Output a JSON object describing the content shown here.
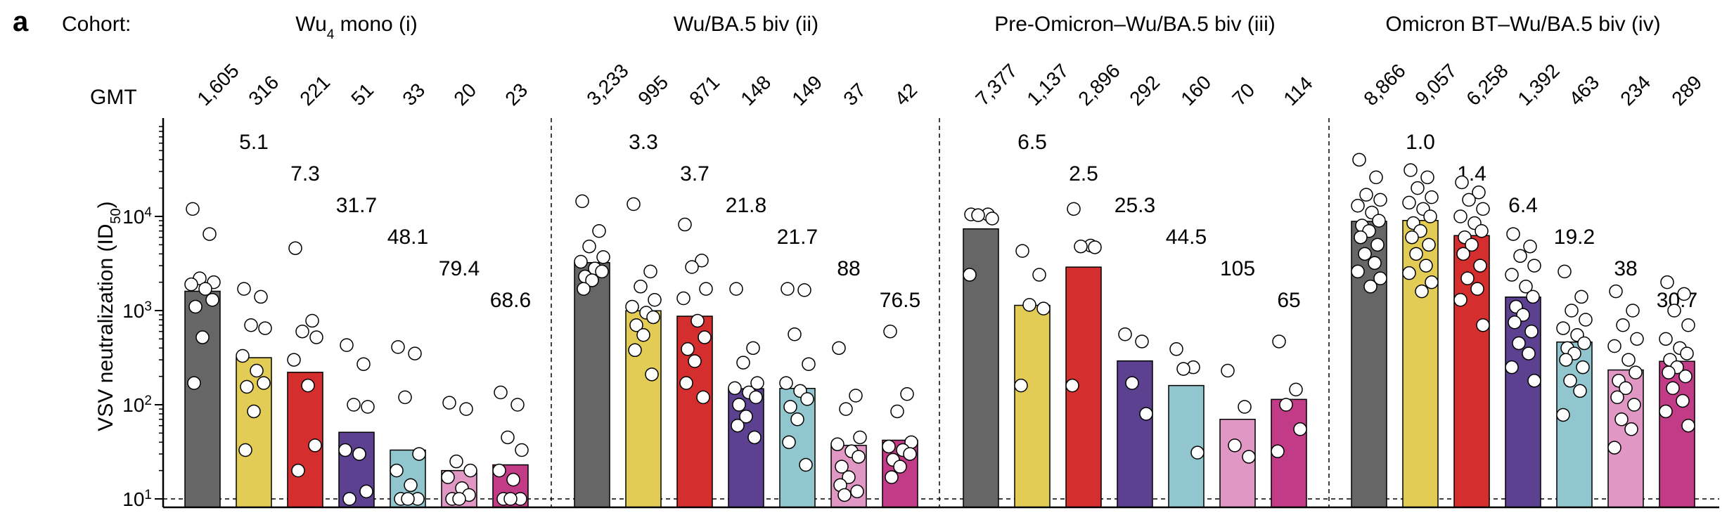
{
  "panel_label": "a",
  "cohort_label": "Cohort:",
  "gmt_label": "GMT",
  "colors": [
    "#666666",
    "#e3cc55",
    "#d42e2e",
    "#5b418f",
    "#92c6cf",
    "#e097c3",
    "#c13b87"
  ],
  "chart_data": {
    "type": "bar",
    "ylabel": "VSV neutralization (ID50)",
    "yscale": "log",
    "ylim": [
      8,
      100000
    ],
    "yticks": [
      {
        "value": 10,
        "base": "10",
        "exp": "1"
      },
      {
        "value": 100,
        "base": "10",
        "exp": "2"
      },
      {
        "value": 1000,
        "base": "10",
        "exp": "3"
      },
      {
        "value": 10000,
        "base": "10",
        "exp": "4"
      }
    ],
    "detection_limit": 10,
    "grid": false,
    "groups": [
      {
        "title": "Wu4 mono (i)",
        "title_main": "Wu",
        "title_sub": "4",
        "title_rest": " mono (i)",
        "gmt_labels": [
          "1,605",
          "316",
          "221",
          "51",
          "33",
          "20",
          "23"
        ],
        "gmt": [
          1605,
          316,
          221,
          51,
          33,
          20,
          23
        ],
        "fold": [
          "",
          "5.1",
          "7.3",
          "31.7",
          "48.1",
          "79.4",
          "68.6"
        ],
        "points": [
          [
            12000,
            6500,
            2200,
            2000,
            1900,
            1700,
            1300,
            1100,
            520,
            170
          ],
          [
            1700,
            1400,
            700,
            650,
            330,
            230,
            170,
            155,
            85,
            33
          ],
          [
            4600,
            780,
            600,
            520,
            300,
            160,
            37,
            20
          ],
          [
            430,
            270,
            100,
            95,
            33,
            30,
            12,
            10
          ],
          [
            410,
            350,
            120,
            30,
            20,
            14,
            10,
            10,
            10
          ],
          [
            105,
            90,
            25,
            20,
            17,
            13,
            11,
            10,
            10
          ],
          [
            135,
            100,
            45,
            33,
            20,
            16,
            10,
            10,
            10
          ]
        ]
      },
      {
        "title": "Wu/BA.5 biv (ii)",
        "title_main": "Wu/BA.5 biv (ii)",
        "title_sub": "",
        "title_rest": "",
        "gmt_labels": [
          "3,233",
          "995",
          "871",
          "148",
          "149",
          "37",
          "42"
        ],
        "gmt": [
          3233,
          995,
          871,
          148,
          149,
          37,
          42
        ],
        "fold": [
          "",
          "3.3",
          "3.7",
          "21.8",
          "21.7",
          "88",
          "76.5"
        ],
        "points": [
          [
            14500,
            7000,
            4800,
            3700,
            3300,
            2800,
            2600,
            2300,
            2100,
            1700
          ],
          [
            13500,
            2600,
            1800,
            1300,
            1100,
            950,
            850,
            700,
            550,
            380,
            210
          ],
          [
            8200,
            3400,
            2900,
            1700,
            1350,
            780,
            520,
            390,
            290,
            170,
            120
          ],
          [
            1700,
            400,
            280,
            170,
            150,
            135,
            120,
            100,
            75,
            60,
            45
          ],
          [
            1700,
            1650,
            560,
            270,
            170,
            140,
            115,
            95,
            70,
            40,
            23
          ],
          [
            400,
            125,
            90,
            45,
            38,
            32,
            28,
            22,
            17,
            14,
            12,
            11
          ],
          [
            600,
            130,
            85,
            40,
            36,
            33,
            30,
            26,
            22,
            17
          ]
        ]
      },
      {
        "title": "Pre-Omicron–Wu/BA.5 biv (iii)",
        "title_main": "Pre-Omicron–Wu/BA.5 biv (iii)",
        "title_sub": "",
        "title_rest": "",
        "gmt_labels": [
          "7,377",
          "1,137",
          "2,896",
          "292",
          "160",
          "70",
          "114"
        ],
        "gmt": [
          7377,
          1137,
          2896,
          292,
          160,
          70,
          114
        ],
        "fold": [
          "",
          "6.5",
          "2.5",
          "25.3",
          "44.5",
          "105",
          "65"
        ],
        "points": [
          [
            10500,
            10500,
            10300,
            9500,
            2400
          ],
          [
            4300,
            2400,
            1150,
            1050,
            160
          ],
          [
            12000,
            4900,
            4800,
            4700,
            160
          ],
          [
            560,
            470,
            170,
            80
          ],
          [
            390,
            250,
            240,
            31
          ],
          [
            230,
            95,
            37,
            28
          ],
          [
            470,
            145,
            100,
            55,
            32
          ]
        ]
      },
      {
        "title": "Omicron BT–Wu/BA.5 biv (iv)",
        "title_main": "Omicron BT–Wu/BA.5 biv (iv)",
        "title_sub": "",
        "title_rest": "",
        "gmt_labels": [
          "8,866",
          "9,057",
          "6,258",
          "1,392",
          "463",
          "234",
          "289"
        ],
        "gmt": [
          8866,
          9057,
          6258,
          1392,
          463,
          234,
          289
        ],
        "fold": [
          "",
          "1.0",
          "1.4",
          "6.4",
          "19.2",
          "38",
          "30.7"
        ],
        "points": [
          [
            40000,
            26000,
            17000,
            15000,
            13000,
            11000,
            9000,
            8000,
            7000,
            6000,
            5000,
            4000,
            3200,
            2600,
            2200,
            1800
          ],
          [
            31000,
            26000,
            20000,
            16000,
            14000,
            12000,
            10000,
            8500,
            7000,
            6000,
            5000,
            4000,
            3000,
            2500,
            2000,
            1600
          ],
          [
            23000,
            18000,
            15000,
            12000,
            10000,
            8500,
            7000,
            6000,
            5000,
            4000,
            3000,
            2200,
            1700,
            1300,
            700
          ],
          [
            6500,
            4800,
            3800,
            3000,
            2400,
            1800,
            1400,
            1100,
            900,
            750,
            600,
            450,
            350,
            250,
            180
          ],
          [
            2600,
            1400,
            1000,
            800,
            650,
            550,
            450,
            400,
            350,
            300,
            250,
            180,
            140,
            78
          ],
          [
            1600,
            1000,
            700,
            500,
            420,
            300,
            220,
            180,
            150,
            120,
            100,
            70,
            55,
            35
          ],
          [
            2000,
            1500,
            1000,
            700,
            500,
            400,
            350,
            300,
            250,
            220,
            200,
            150,
            110,
            85,
            60
          ]
        ]
      }
    ]
  }
}
